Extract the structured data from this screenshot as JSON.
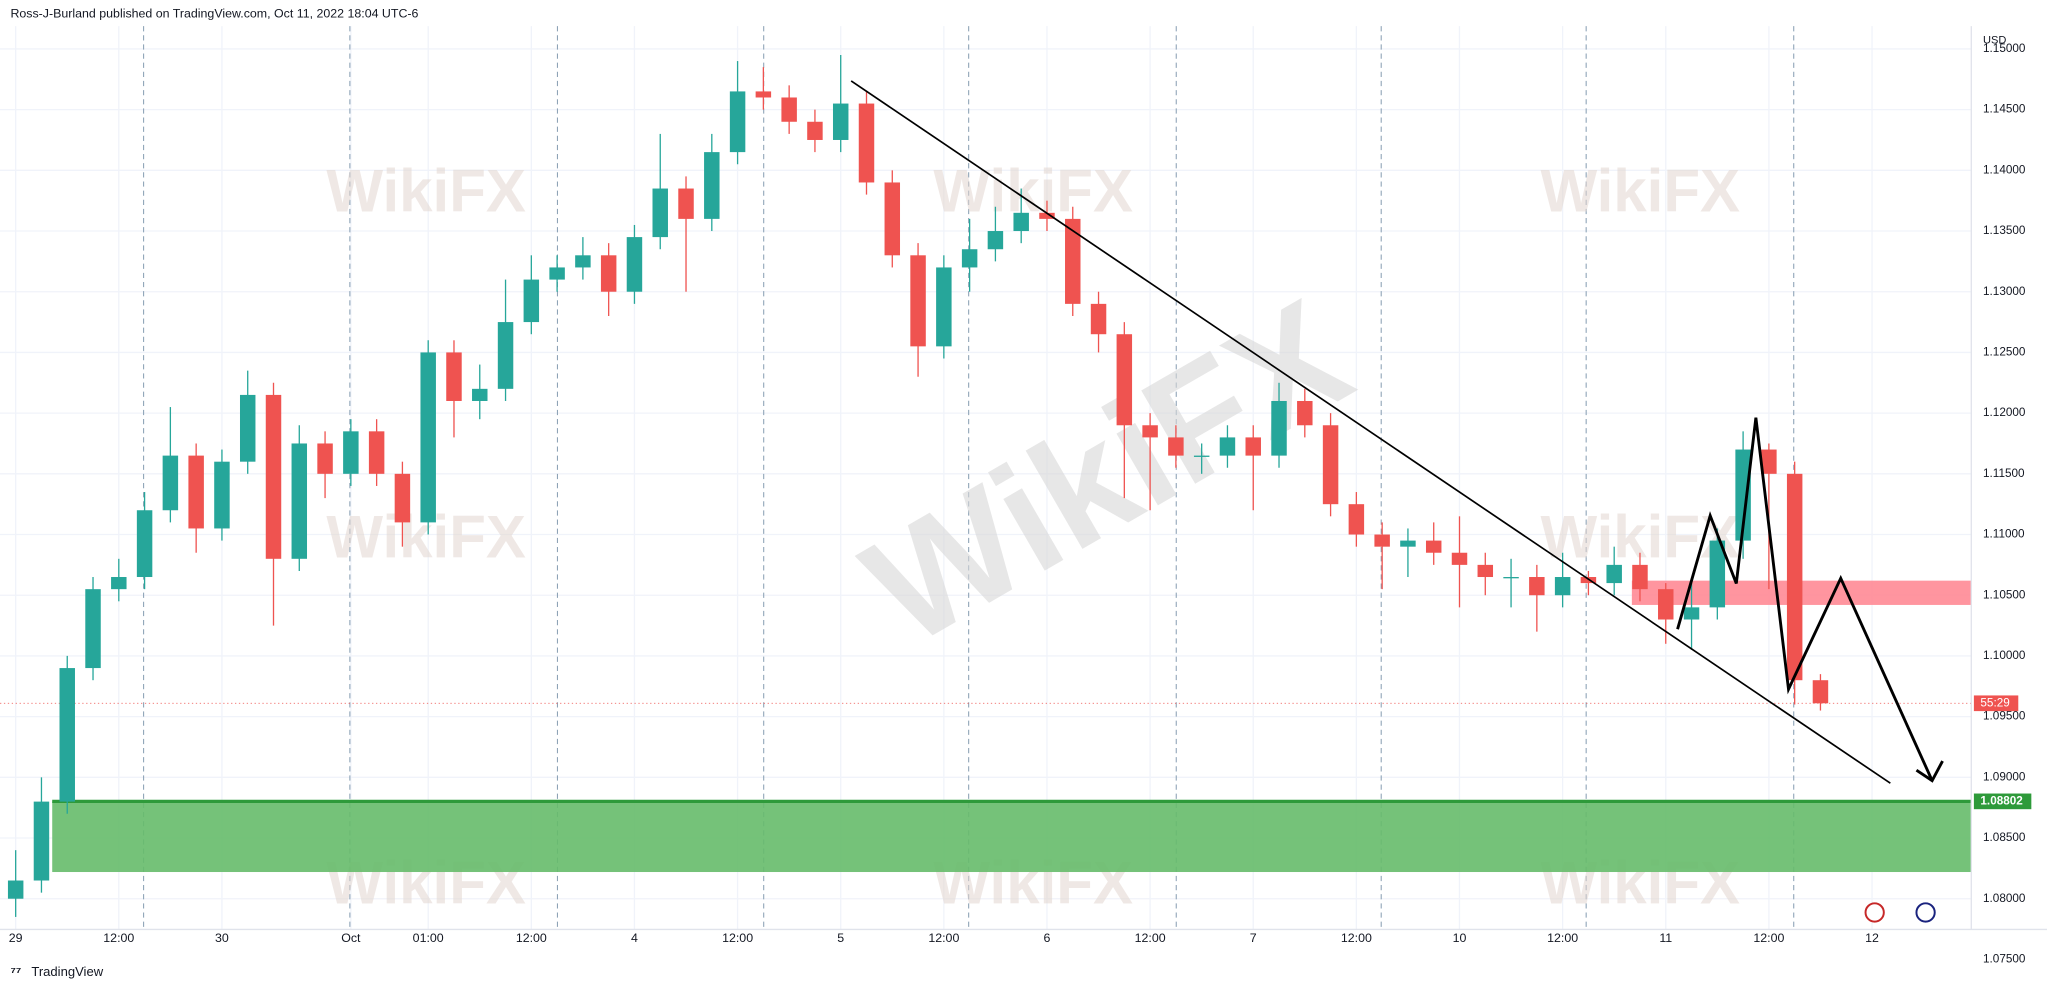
{
  "chart_data": {
    "type": "candlestick",
    "header": "Ross-J-Burland published on TradingView.com, Oct 11, 2022 18:04 UTC-6",
    "currency": "USD",
    "footer": "TradingView",
    "watermark": "WikiFX",
    "up_color": "#26a69a",
    "down_color": "#ef5350",
    "open": [
      1.08,
      1.0815,
      1.088,
      1.099,
      1.1055,
      1.1065,
      1.112,
      1.1165,
      1.1105,
      1.116,
      1.1215,
      1.108,
      1.1175,
      1.115,
      1.1185,
      1.115,
      1.111,
      1.125,
      1.121,
      1.122,
      1.1275,
      1.131,
      1.132,
      1.133,
      1.13,
      1.1345,
      1.1385,
      1.136,
      1.1415,
      1.1465,
      1.146,
      1.144,
      1.1425,
      1.1455,
      1.139,
      1.133,
      1.1255,
      1.132,
      1.1335,
      1.135,
      1.1365,
      1.136,
      1.129,
      1.1265,
      1.119,
      1.118,
      1.1165,
      1.1165,
      1.118,
      1.1165,
      1.121,
      1.119,
      1.1125,
      1.11,
      1.109,
      1.1095,
      1.1085,
      1.1075,
      1.1065,
      1.1065,
      1.105,
      1.1065,
      1.106,
      1.1075,
      1.1055,
      1.103,
      1.104,
      1.1095,
      1.117,
      1.115,
      1.098
    ],
    "high": [
      1.084,
      1.09,
      1.1,
      1.1065,
      1.108,
      1.1135,
      1.1205,
      1.1175,
      1.117,
      1.1235,
      1.1225,
      1.119,
      1.1185,
      1.1195,
      1.1195,
      1.116,
      1.126,
      1.126,
      1.124,
      1.131,
      1.133,
      1.133,
      1.1345,
      1.134,
      1.1355,
      1.143,
      1.1395,
      1.143,
      1.149,
      1.1485,
      1.147,
      1.145,
      1.1495,
      1.1465,
      1.14,
      1.134,
      1.133,
      1.136,
      1.137,
      1.1385,
      1.1375,
      1.137,
      1.13,
      1.1275,
      1.12,
      1.119,
      1.1175,
      1.119,
      1.119,
      1.1225,
      1.122,
      1.12,
      1.1135,
      1.111,
      1.1105,
      1.111,
      1.1115,
      1.1085,
      1.108,
      1.1075,
      1.1085,
      1.107,
      1.109,
      1.1085,
      1.106,
      1.106,
      1.1105,
      1.1185,
      1.1175,
      1.116,
      1.0985
    ],
    "low": [
      1.0785,
      1.0805,
      1.087,
      1.098,
      1.1045,
      1.1055,
      1.111,
      1.1085,
      1.1095,
      1.115,
      1.1025,
      1.107,
      1.113,
      1.114,
      1.114,
      1.109,
      1.11,
      1.118,
      1.1195,
      1.121,
      1.1265,
      1.13,
      1.131,
      1.128,
      1.129,
      1.1335,
      1.13,
      1.135,
      1.1405,
      1.145,
      1.143,
      1.1415,
      1.1415,
      1.138,
      1.132,
      1.123,
      1.1245,
      1.13,
      1.1325,
      1.134,
      1.135,
      1.128,
      1.125,
      1.113,
      1.112,
      1.1155,
      1.115,
      1.1155,
      1.112,
      1.1155,
      1.118,
      1.1115,
      1.109,
      1.1055,
      1.1065,
      1.1075,
      1.104,
      1.105,
      1.104,
      1.102,
      1.104,
      1.105,
      1.105,
      1.1045,
      1.101,
      1.1005,
      1.103,
      1.108,
      1.1055,
      1.096,
      1.0955
    ],
    "close": [
      1.0815,
      1.088,
      1.099,
      1.1055,
      1.1065,
      1.112,
      1.1165,
      1.1105,
      1.116,
      1.1215,
      1.108,
      1.1175,
      1.115,
      1.1185,
      1.115,
      1.111,
      1.125,
      1.121,
      1.122,
      1.1275,
      1.131,
      1.132,
      1.133,
      1.13,
      1.1345,
      1.1385,
      1.136,
      1.1415,
      1.1465,
      1.146,
      1.144,
      1.1425,
      1.1455,
      1.139,
      1.133,
      1.1255,
      1.132,
      1.1335,
      1.135,
      1.1365,
      1.136,
      1.129,
      1.1265,
      1.119,
      1.118,
      1.1165,
      1.1165,
      1.118,
      1.1165,
      1.121,
      1.119,
      1.1125,
      1.11,
      1.109,
      1.1095,
      1.1085,
      1.1075,
      1.1065,
      1.1065,
      1.105,
      1.1065,
      1.106,
      1.1075,
      1.1055,
      1.103,
      1.104,
      1.1095,
      1.117,
      1.115,
      1.098,
      1.0961
    ],
    "xlim": [
      -0.608,
      75.85
    ],
    "xticks": [
      {
        "value": 0,
        "label": "29"
      },
      {
        "value": 4,
        "label": "12:00"
      },
      {
        "value": 8,
        "label": "30"
      },
      {
        "value": 13,
        "label": "Oct"
      },
      {
        "value": 16,
        "label": "01:00"
      },
      {
        "value": 20,
        "label": "12:00"
      },
      {
        "value": 24,
        "label": "4"
      },
      {
        "value": 28,
        "label": "12:00"
      },
      {
        "value": 32,
        "label": "5"
      },
      {
        "value": 36,
        "label": "12:00"
      },
      {
        "value": 40,
        "label": "6"
      },
      {
        "value": 44,
        "label": "12:00"
      },
      {
        "value": 48,
        "label": "7"
      },
      {
        "value": 52,
        "label": "12:00"
      },
      {
        "value": 56,
        "label": "10"
      },
      {
        "value": 60,
        "label": "12:00"
      },
      {
        "value": 64,
        "label": "11"
      },
      {
        "value": 68,
        "label": "12:00"
      },
      {
        "value": 72,
        "label": "12"
      }
    ],
    "ylim": [
      1.07446,
      1.15403
    ],
    "yticks": [
      {
        "value": 1.075,
        "label": "1.07500"
      },
      {
        "value": 1.08,
        "label": "1.08000"
      },
      {
        "value": 1.085,
        "label": "1.08500"
      },
      {
        "value": 1.09,
        "label": "1.09000"
      },
      {
        "value": 1.095,
        "label": "1.09500"
      },
      {
        "value": 1.1,
        "label": "1.10000"
      },
      {
        "value": 1.105,
        "label": "1.10500"
      },
      {
        "value": 1.11,
        "label": "1.11000"
      },
      {
        "value": 1.115,
        "label": "1.11500"
      },
      {
        "value": 1.12,
        "label": "1.12000"
      },
      {
        "value": 1.125,
        "label": "1.12500"
      },
      {
        "value": 1.13,
        "label": "1.13000"
      },
      {
        "value": 1.135,
        "label": "1.13500"
      },
      {
        "value": 1.14,
        "label": "1.14000"
      },
      {
        "value": 1.145,
        "label": "1.14500"
      },
      {
        "value": 1.15,
        "label": "1.15000"
      }
    ],
    "support_zone": {
      "top": 1.08802,
      "bottom": 1.0822,
      "color": "#66bb6a"
    },
    "resistance_zone": {
      "top": 1.1062,
      "bottom": 1.1042,
      "color": "#ff8a95"
    },
    "last_price": 1.0961,
    "countdown": "55:29"
  }
}
